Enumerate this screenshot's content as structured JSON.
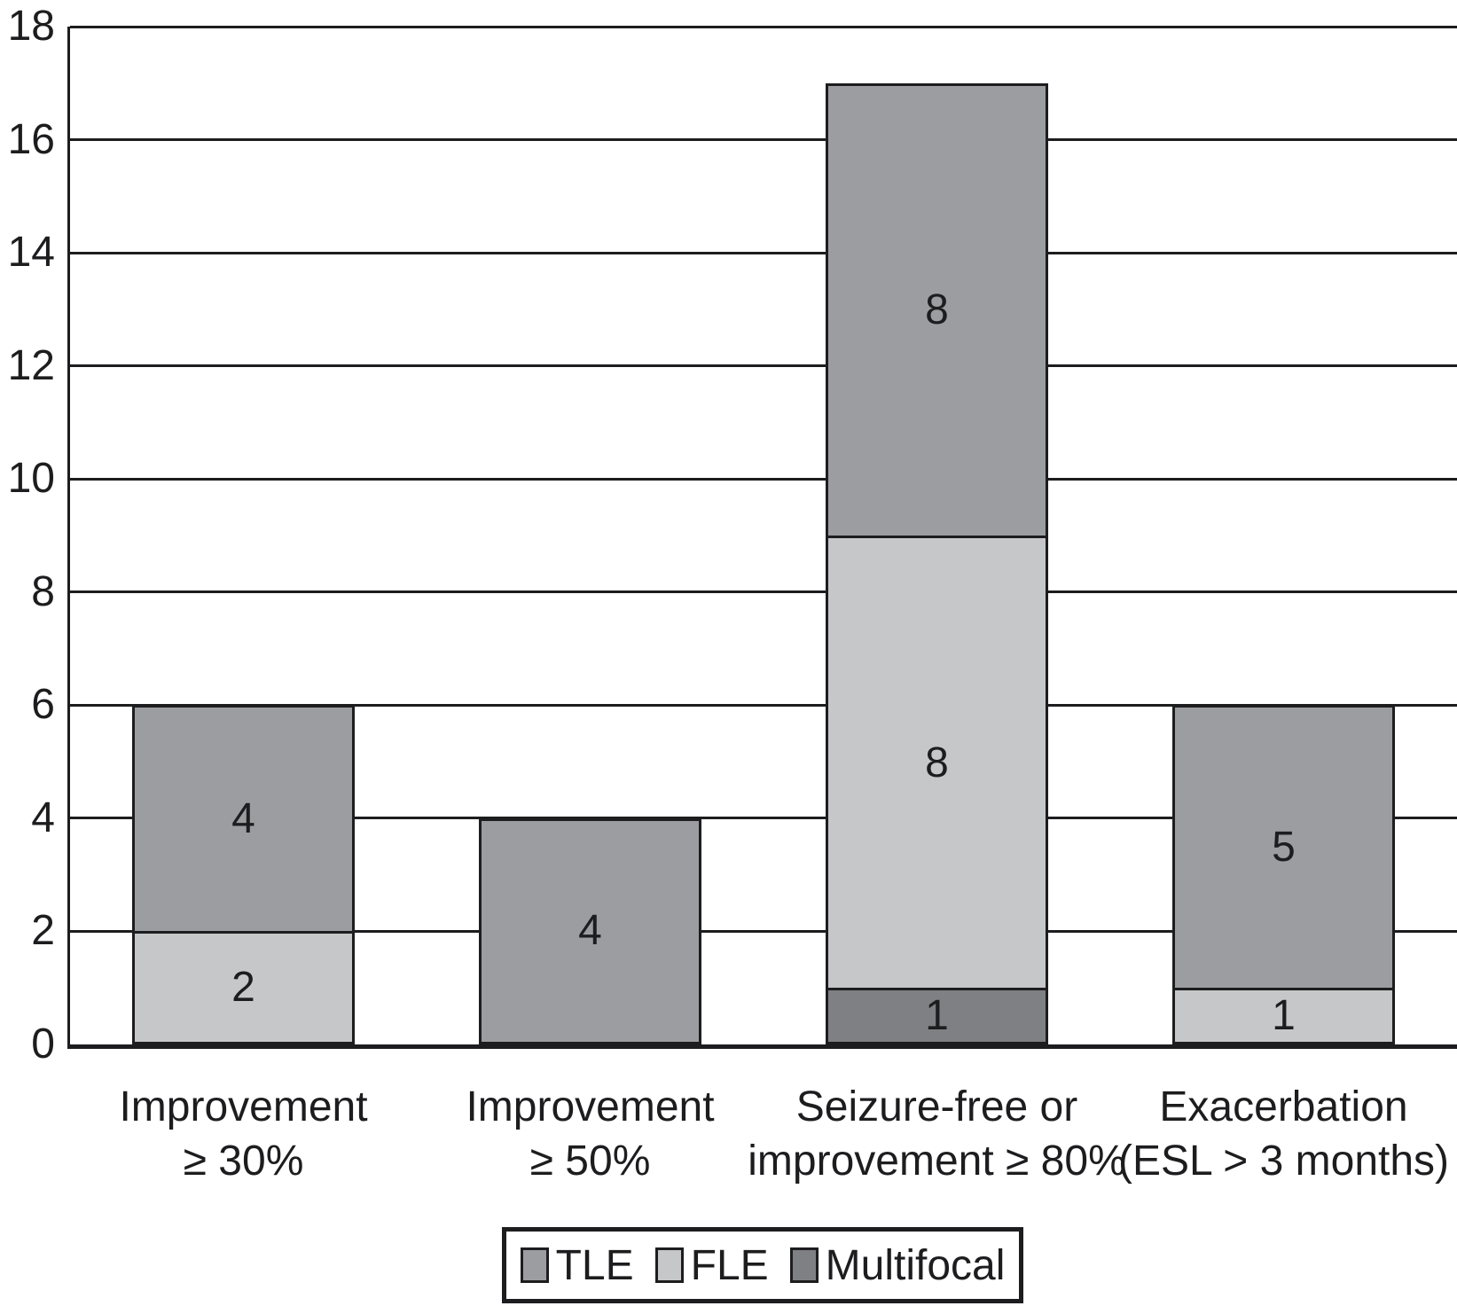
{
  "chart_data": {
    "type": "bar",
    "stacked": true,
    "title": "",
    "xlabel": "",
    "ylabel": "",
    "categories": [
      "Improvement\n≥ 30%",
      "Improvement\n≥ 50%",
      "Seizure-free or\nimprovement ≥ 80%",
      "Exacerbation\n(ESL > 3 months)"
    ],
    "series": [
      {
        "name": "TLE",
        "color": "#9b9da0",
        "values": [
          4,
          4,
          8,
          5
        ]
      },
      {
        "name": "FLE",
        "color": "#c6c7c9",
        "values": [
          2,
          0,
          8,
          1
        ]
      },
      {
        "name": "Multifocal",
        "color": "#7e8083",
        "values": [
          0,
          0,
          1,
          0
        ]
      }
    ],
    "stack_order_bottom_to_top": [
      "Multifocal",
      "FLE",
      "TLE"
    ],
    "stack_totals": [
      6,
      4,
      17,
      6
    ],
    "segment_labels_shown": true,
    "ylim": [
      0,
      18
    ],
    "yticks": [
      0,
      2,
      4,
      6,
      8,
      10,
      12,
      14,
      16,
      18
    ],
    "grid": "horizontal",
    "legend_position": "bottom",
    "ink_color": "#1d1d1f",
    "background_color": "#ffffff"
  }
}
